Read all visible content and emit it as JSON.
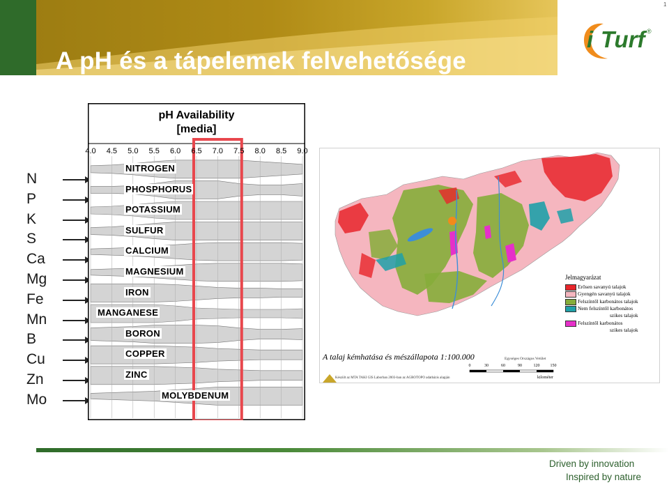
{
  "header": {
    "title": "A pH és a tápelemek felvehetősége",
    "logo_i": "i",
    "logo_text": "Turf",
    "logo_reg": "®",
    "corner_mark": "1"
  },
  "elements": [
    "N",
    "P",
    "K",
    "S",
    "Ca",
    "Mg",
    "Fe",
    "Mn",
    "B",
    "Cu",
    "Zn",
    "Mo"
  ],
  "ph_chart": {
    "title_line1": "pH Availability",
    "title_line2": "[media]",
    "ticks": [
      "4.0",
      "4.5",
      "5.0",
      "5.5",
      "6.0",
      "6.5",
      "7.0",
      "7.5",
      "8.0",
      "8.5",
      "9.0"
    ],
    "nutrients": [
      "NITROGEN",
      "PHOSPHORUS",
      "POTASSIUM",
      "SULFUR",
      "CALCIUM",
      "MAGNESIUM",
      "IRON",
      "MANGANESE",
      "BORON",
      "COPPER",
      "ZINC",
      "MOLYBDENUM"
    ],
    "highlight_range": [
      6.5,
      7.5
    ],
    "highlight_color": "#e8474d",
    "band_color": "#d4d4d4"
  },
  "map": {
    "caption": "A talaj kémhatása és mészállapota 1:100.000",
    "credit": "Készült az MTA TAKI GIS Laborban 2003-ban az AGROTOPO adatbázis alapján",
    "scale_title": "Egységes Országos Vetület",
    "scale_values": [
      "0",
      "30",
      "60",
      "90",
      "120",
      "150"
    ],
    "scale_unit": "kilométer",
    "legend_title": "Jelmagyarázat",
    "legend": [
      {
        "label": "Erősen savanyú talajok",
        "color": "#e8262b"
      },
      {
        "label": "Gyengén savanyú talajok",
        "color": "#f5b6bf"
      },
      {
        "label": "Felszíntől karbonátos talajok",
        "color": "#86ad3a"
      },
      {
        "label": "Nem felszíntől karbonátos",
        "label2": "szikes talajok",
        "color": "#1fa0a8"
      },
      {
        "label": "Felszíntől karbonátos",
        "label2": "szikes talajok",
        "color": "#e630c9"
      }
    ]
  },
  "footer": {
    "tagline1": "Driven by innovation",
    "tagline2": "Inspired by nature"
  }
}
